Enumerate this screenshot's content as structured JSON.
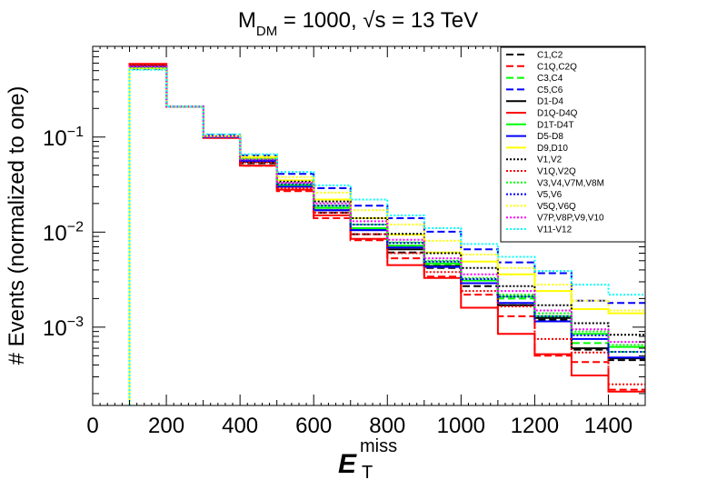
{
  "chart_data": {
    "type": "histogram-step",
    "title": {
      "parts": [
        {
          "text": "M",
          "style": "normal"
        },
        {
          "text": "DM",
          "style": "sub"
        },
        {
          "text": " = 1000,   ",
          "style": "normal"
        },
        {
          "text": "√",
          "style": "normal"
        },
        {
          "text": "s = 13 TeV",
          "style": "normal"
        }
      ]
    },
    "xlabel": {
      "main": "E",
      "sup": "miss",
      "sub": "T"
    },
    "ylabel": "# Events (normalized to one)",
    "xlim": [
      0,
      1500
    ],
    "ylim": [
      0.00015,
      0.9
    ],
    "yscale": "log",
    "x_ticks": [
      "0",
      "200",
      "400",
      "600",
      "800",
      "1000",
      "1200",
      "1400"
    ],
    "y_ticks": [
      {
        "base": "10",
        "exp": "−1",
        "value": 0.1
      },
      {
        "base": "10",
        "exp": "−2",
        "value": 0.01
      },
      {
        "base": "10",
        "exp": "−3",
        "value": 0.001
      }
    ],
    "legend_position": "top-right",
    "bin_edges": [
      100,
      200,
      300,
      400,
      500,
      600,
      700,
      800,
      900,
      1000,
      1100,
      1200,
      1300,
      1400,
      1500
    ],
    "series": [
      {
        "name": "C1,C2",
        "color": "#000000",
        "dash": "dashed",
        "values": [
          0.57,
          0.21,
          0.1,
          0.053,
          0.03,
          0.016,
          0.0095,
          0.0061,
          0.0042,
          0.0027,
          0.0017,
          0.0012,
          0.00058,
          0.00045
        ]
      },
      {
        "name": "C1Q,C2Q",
        "color": "#ff0000",
        "dash": "dashed",
        "values": [
          0.58,
          0.21,
          0.1,
          0.05,
          0.027,
          0.014,
          0.0082,
          0.0053,
          0.0034,
          0.0022,
          0.0013,
          0.0005,
          0.00043,
          0.00022
        ]
      },
      {
        "name": "C3,C4",
        "color": "#00ff00",
        "dash": "dashed",
        "values": [
          0.55,
          0.21,
          0.102,
          0.058,
          0.031,
          0.018,
          0.011,
          0.0072,
          0.0046,
          0.0031,
          0.002,
          0.0013,
          0.00068,
          0.00055
        ]
      },
      {
        "name": "C5,C6",
        "color": "#0000ff",
        "dash": "dashed",
        "values": [
          0.52,
          0.21,
          0.105,
          0.064,
          0.041,
          0.029,
          0.019,
          0.014,
          0.0101,
          0.0066,
          0.0048,
          0.0037,
          0.0019,
          0.0018
        ]
      },
      {
        "name": "D1-D4",
        "color": "#000000",
        "dash": "solid",
        "values": [
          0.56,
          0.21,
          0.1,
          0.055,
          0.03,
          0.017,
          0.0105,
          0.0066,
          0.0044,
          0.0029,
          0.0017,
          0.00125,
          0.0006,
          0.00047
        ]
      },
      {
        "name": "D1Q-D4Q",
        "color": "#ff0000",
        "dash": "solid",
        "values": [
          0.59,
          0.21,
          0.098,
          0.05,
          0.028,
          0.015,
          0.0085,
          0.0045,
          0.0033,
          0.0016,
          0.00085,
          0.00052,
          0.00031,
          0.00021
        ]
      },
      {
        "name": "D1T-D4T",
        "color": "#00ff00",
        "dash": "solid",
        "values": [
          0.55,
          0.21,
          0.1,
          0.057,
          0.031,
          0.018,
          0.011,
          0.0072,
          0.0047,
          0.0031,
          0.0021,
          0.0013,
          0.00085,
          0.00062
        ]
      },
      {
        "name": "D5-D8",
        "color": "#0000ff",
        "dash": "solid",
        "values": [
          0.55,
          0.21,
          0.1,
          0.056,
          0.03,
          0.017,
          0.0105,
          0.0069,
          0.0043,
          0.0029,
          0.0018,
          0.00115,
          0.00075,
          0.00048
        ]
      },
      {
        "name": "D9,D10",
        "color": "#ffff00",
        "dash": "solid",
        "values": [
          0.53,
          0.21,
          0.102,
          0.061,
          0.035,
          0.022,
          0.014,
          0.0094,
          0.0061,
          0.0049,
          0.0036,
          0.0024,
          0.00155,
          0.0014
        ]
      },
      {
        "name": "V1,V2",
        "color": "#000000",
        "dash": "dotted",
        "values": [
          0.55,
          0.21,
          0.101,
          0.058,
          0.034,
          0.021,
          0.014,
          0.0096,
          0.006,
          0.0042,
          0.0027,
          0.0017,
          0.0011,
          0.00083
        ]
      },
      {
        "name": "V1Q,V2Q",
        "color": "#ff0000",
        "dash": "dotted",
        "values": [
          0.57,
          0.21,
          0.1,
          0.054,
          0.029,
          0.016,
          0.0095,
          0.006,
          0.0038,
          0.0024,
          0.00165,
          0.00075,
          0.00054,
          0.00025
        ]
      },
      {
        "name": "V3,V4,V7M,V8M",
        "color": "#00ff00",
        "dash": "dotted",
        "values": [
          0.54,
          0.21,
          0.102,
          0.059,
          0.032,
          0.019,
          0.012,
          0.0078,
          0.005,
          0.0033,
          0.0022,
          0.0014,
          0.0009,
          0.00065
        ]
      },
      {
        "name": "V5,V6",
        "color": "#0000ff",
        "dash": "dotted",
        "values": [
          0.55,
          0.21,
          0.101,
          0.057,
          0.032,
          0.019,
          0.012,
          0.0077,
          0.0049,
          0.0032,
          0.0021,
          0.0013,
          0.00082,
          0.00055
        ]
      },
      {
        "name": "V5Q,V6Q",
        "color": "#ffff00",
        "dash": "dotted",
        "values": [
          0.52,
          0.21,
          0.103,
          0.063,
          0.038,
          0.026,
          0.017,
          0.012,
          0.0081,
          0.0058,
          0.0042,
          0.0028,
          0.0019,
          0.0015
        ]
      },
      {
        "name": "V7P,V8P,V9,V10",
        "color": "#ff00ff",
        "dash": "dotted",
        "values": [
          0.55,
          0.21,
          0.101,
          0.058,
          0.033,
          0.02,
          0.013,
          0.0083,
          0.0053,
          0.0036,
          0.0024,
          0.0015,
          0.00095,
          0.0007
        ]
      },
      {
        "name": "V11-V12",
        "color": "#00ffff",
        "dash": "dotted",
        "values": [
          0.51,
          0.21,
          0.107,
          0.066,
          0.043,
          0.031,
          0.022,
          0.015,
          0.011,
          0.0075,
          0.0055,
          0.0039,
          0.0028,
          0.0022
        ]
      }
    ]
  }
}
